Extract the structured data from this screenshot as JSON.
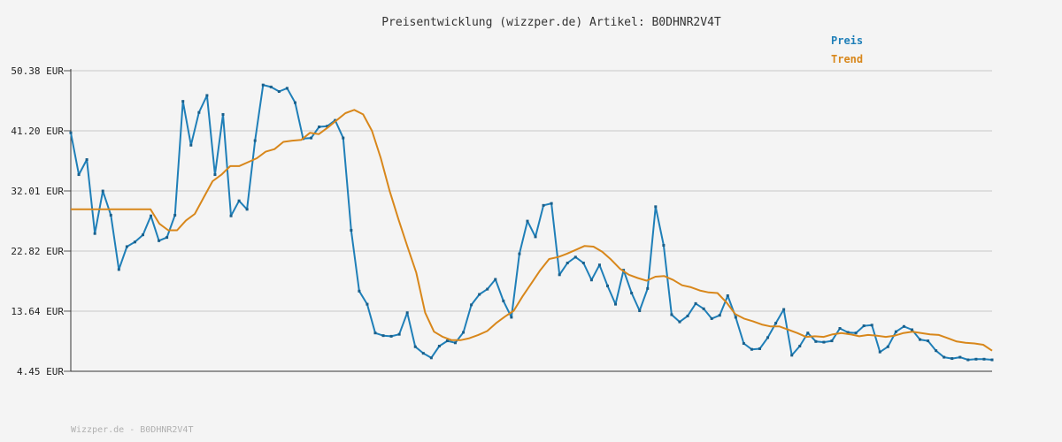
{
  "chart_data": {
    "type": "line",
    "title": "Preisentwicklung (wizzper.de) Artikel: B0DHNR2V4T",
    "xlabel": "",
    "ylabel": "",
    "ylim": [
      4.45,
      50.38
    ],
    "yticks": [
      "50.38 EUR",
      "41.20 EUR",
      "32.01 EUR",
      "22.82 EUR",
      "13.64 EUR",
      "4.45 EUR"
    ],
    "ytick_values": [
      50.38,
      41.2,
      32.01,
      22.82,
      13.64,
      4.45
    ],
    "grid": true,
    "legend_position": "top-right",
    "series": [
      {
        "name": "Preis",
        "color": "#1f7fb8",
        "values": [
          40.9,
          34.5,
          36.8,
          25.5,
          32.0,
          28.3,
          20.0,
          23.5,
          24.2,
          25.3,
          28.2,
          24.4,
          24.9,
          28.3,
          45.7,
          39.0,
          44.0,
          46.6,
          34.5,
          43.7,
          28.2,
          30.5,
          29.2,
          39.7,
          48.2,
          47.9,
          47.2,
          47.7,
          45.5,
          40.0,
          40.1,
          41.8,
          41.9,
          42.8,
          40.1,
          26.0,
          16.7,
          14.7,
          10.3,
          9.9,
          9.8,
          10.1,
          13.4,
          8.2,
          7.2,
          6.5,
          8.3,
          9.1,
          8.8,
          10.4,
          14.6,
          16.2,
          17.0,
          18.5,
          15.2,
          12.7,
          22.4,
          27.4,
          25.0,
          29.8,
          30.1,
          19.2,
          21.0,
          21.9,
          21.0,
          18.4,
          20.7,
          17.5,
          14.7,
          19.9,
          16.4,
          13.7,
          17.1,
          29.6,
          23.7,
          13.1,
          12.0,
          12.9,
          14.8,
          14.0,
          12.5,
          13.0,
          16.0,
          12.7,
          8.7,
          7.8,
          7.9,
          9.6,
          11.8,
          13.9,
          6.9,
          8.3,
          10.3,
          9.0,
          8.9,
          9.1,
          11.0,
          10.4,
          10.3,
          11.4,
          11.5,
          7.4,
          8.2,
          10.5,
          11.3,
          10.8,
          9.3,
          9.1,
          7.6,
          6.6,
          6.4,
          6.6,
          6.2,
          6.3,
          6.3,
          6.2
        ]
      },
      {
        "name": "Trend",
        "color": "#d8871b",
        "values": [
          29.2,
          29.2,
          29.2,
          29.2,
          29.2,
          29.2,
          29.2,
          29.2,
          29.2,
          29.2,
          27.0,
          26.0,
          26.0,
          27.5,
          28.5,
          31.0,
          33.5,
          34.5,
          35.8,
          35.8,
          36.4,
          37.0,
          38.0,
          38.4,
          39.5,
          39.7,
          39.8,
          40.9,
          40.7,
          41.7,
          42.8,
          43.9,
          44.4,
          43.7,
          41.2,
          37.0,
          32.0,
          27.6,
          23.5,
          19.5,
          13.4,
          10.5,
          9.7,
          9.2,
          9.2,
          9.5,
          10.0,
          10.6,
          11.8,
          12.8,
          13.7,
          15.9,
          17.9,
          19.9,
          21.6,
          21.9,
          22.4,
          23.0,
          23.6,
          23.5,
          22.7,
          21.5,
          20.1,
          19.2,
          18.7,
          18.3,
          18.9,
          19.0,
          18.4,
          17.6,
          17.3,
          16.8,
          16.5,
          16.4,
          15.0,
          13.2,
          12.5,
          12.1,
          11.6,
          11.3,
          11.3,
          10.8,
          10.3,
          9.7,
          9.8,
          9.7,
          10.1,
          10.3,
          10.1,
          9.8,
          10.0,
          9.9,
          9.7,
          9.9,
          10.3,
          10.5,
          10.3,
          10.1,
          10.0,
          9.5,
          9.0,
          8.8,
          8.7,
          8.5,
          7.6
        ]
      }
    ]
  },
  "footer": "Wizzper.de - B0DHNR2V4T"
}
